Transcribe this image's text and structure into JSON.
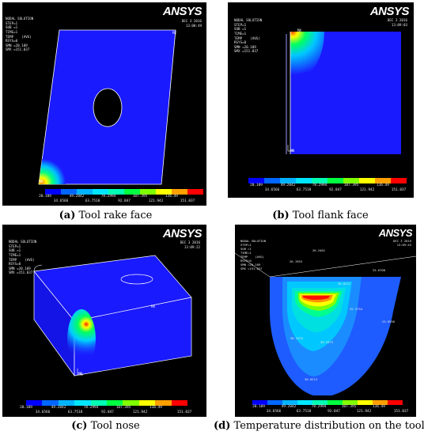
{
  "colorbar": {
    "colors": [
      "#0000ff",
      "#0066ff",
      "#00b3ff",
      "#00e6ff",
      "#00ffb3",
      "#00ff40",
      "#80ff00",
      "#ffff00",
      "#ffa000",
      "#ff0000"
    ],
    "labels_top": [
      "20.109",
      "49.2042",
      "78.2994",
      "107.395",
      "136.49"
    ],
    "labels_bottom": [
      "34.6566",
      "63.7518",
      "92.847",
      "121.942",
      "151.037"
    ]
  },
  "panel_a": {
    "header": [
      "NODAL SOLUTION",
      "",
      "STEP=1",
      "SUB =1",
      "TIME=1",
      "TEMP    (AVG)",
      "RSYS=0",
      "SMN =20.109",
      "SMX =151.037"
    ],
    "logo": "ANSYS",
    "date": [
      "DEC  3 2016",
      "13:08:49"
    ],
    "mx": "MX",
    "mn": "MN",
    "caption_letter": "(a)",
    "caption_text": " Tool rake face"
  },
  "panel_b": {
    "header": [
      "NODAL SOLUTION",
      "",
      "STEP=1",
      "SUB =1",
      "TIME=1",
      "TEMP    (AVG)",
      "RSYS=0",
      "SMN =20.109",
      "SMX =151.037"
    ],
    "logo": "ANSYS",
    "date": [
      "DEC  3 2016",
      "13:09:03"
    ],
    "mx": "MX",
    "mn": "MN",
    "caption_letter": "(b)",
    "caption_text": " Tool flank face"
  },
  "panel_c": {
    "header": [
      "NODAL SOLUTION",
      "",
      "STEP=1",
      "SUB =1",
      "TIME=1",
      "TEMP    (AVG)",
      "RSYS=0",
      "SMN =20.109",
      "SMX =151.037"
    ],
    "logo": "ANSYS",
    "date": [
      "DEC  3 2016",
      "13:09:22"
    ],
    "mx": "MX",
    "mn": "MN",
    "caption_letter": "(c)",
    "caption_text": " Tool nose"
  },
  "panel_d": {
    "header": [
      "NODAL SOLUTION",
      "",
      "STEP=1",
      "SUB =1",
      "TIME=1",
      "TEMP    (AVG)",
      "RSYS=0",
      "SMN =20.109",
      "SMX =151.037"
    ],
    "logo": "ANSYS",
    "date": [
      "DEC  3 2016",
      "13:09:43"
    ],
    "probes": [
      "26.2401",
      "26.1955",
      "25.6708",
      "36.8231",
      "32.5734",
      "23.6936",
      "36.3123",
      "36.2574",
      "30.0213"
    ],
    "caption_letter": "(d)",
    "caption_text": " Temperature distribution on the tool"
  }
}
